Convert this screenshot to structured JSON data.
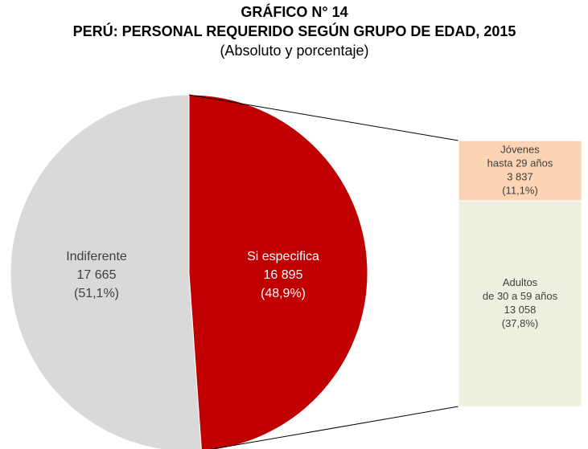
{
  "chart_data": {
    "type": "pie-of-bar",
    "title": "GRÁFICO N° 14",
    "subtitle": "PERÚ: PERSONAL REQUERIDO SEGÚN GRUPO DE EDAD, 2015",
    "note": "(Absoluto y porcentaje)",
    "pie": {
      "categories": [
        "Indiferente",
        "Si especifica"
      ],
      "values": [
        17665,
        16895
      ],
      "value_labels": [
        "17 665",
        "16 895"
      ],
      "percent_labels": [
        "(51,1%)",
        "(48,9%)"
      ],
      "colors": [
        "#d9d9d9",
        "#c00000"
      ],
      "label_colors": [
        "#404040",
        "#ffffff"
      ]
    },
    "bar": {
      "categories": [
        [
          "Jóvenes",
          "hasta 29 años"
        ],
        [
          "Adultos",
          "de 30 a 59 años"
        ]
      ],
      "values": [
        3837,
        13058
      ],
      "value_labels": [
        "3 837",
        "13 058"
      ],
      "percent_labels": [
        "(11,1%)",
        "(37,8%)"
      ],
      "colors": [
        "#fbd4b4",
        "#ebf1de"
      ]
    }
  }
}
